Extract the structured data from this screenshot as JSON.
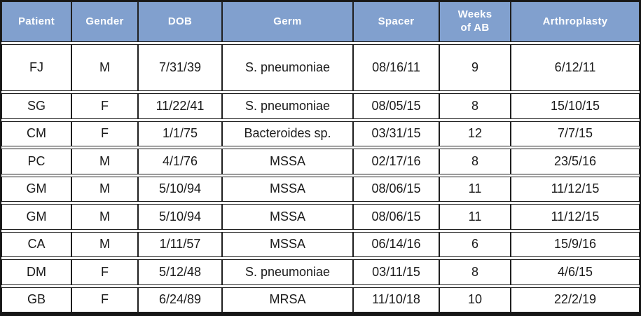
{
  "chart_data": {
    "type": "table",
    "title": "",
    "columns": [
      "Patient",
      "Gender",
      "DOB",
      "Germ",
      "Spacer",
      "Weeks\nof AB",
      "Arthroplasty"
    ],
    "column_keys": [
      "patient",
      "gender",
      "dob",
      "germ",
      "spacer",
      "weeks-of-ab",
      "arthroplasty"
    ],
    "rows": [
      [
        "FJ",
        "M",
        "7/31/39",
        "S. pneumoniae",
        "08/16/11",
        "9",
        "6/12/11"
      ],
      [
        "SG",
        "F",
        "11/22/41",
        "S. pneumoniae",
        "08/05/15",
        "8",
        "15/10/15"
      ],
      [
        "CM",
        "F",
        "1/1/75",
        "Bacteroides sp.",
        "03/31/15",
        "12",
        "7/7/15"
      ],
      [
        "PC",
        "M",
        "4/1/76",
        "MSSA",
        "02/17/16",
        "8",
        "23/5/16"
      ],
      [
        "GM",
        "M",
        "5/10/94",
        "MSSA",
        "08/06/15",
        "11",
        "11/12/15"
      ],
      [
        "GM",
        "M",
        "5/10/94",
        "MSSA",
        "08/06/15",
        "11",
        "11/12/15"
      ],
      [
        "CA",
        "M",
        "1/11/57",
        "MSSA",
        "06/14/16",
        "6",
        "15/9/16"
      ],
      [
        "DM",
        "F",
        "5/12/48",
        "S. pneumoniae",
        "03/11/15",
        "8",
        "4/6/15"
      ],
      [
        "GB",
        "F",
        "6/24/89",
        "MRSA",
        "11/10/18",
        "10",
        "22/2/19"
      ]
    ],
    "layout": {
      "grid": true,
      "header_position": "top"
    },
    "colors": {
      "header_bg": "#81a0ce",
      "header_text": "#ffffff",
      "border": "#1f1f1f",
      "row_bg": "#ffffff",
      "body_text": "#1a1a1a"
    }
  }
}
